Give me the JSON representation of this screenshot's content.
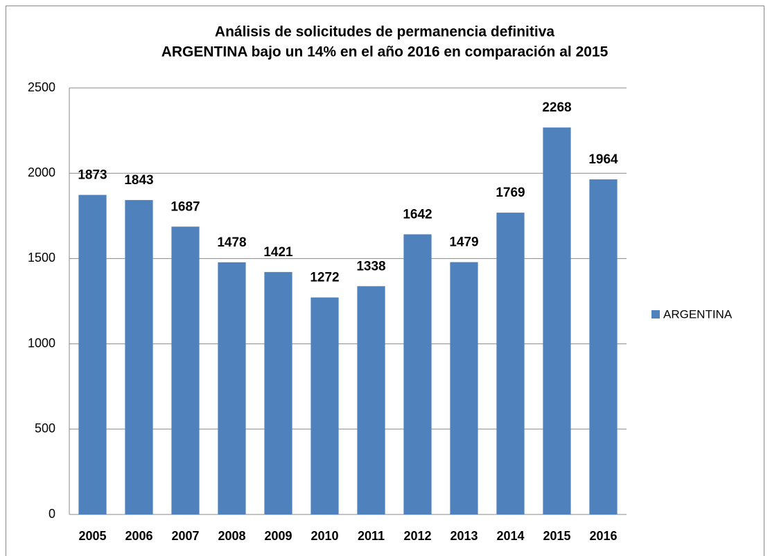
{
  "chart_data": {
    "type": "bar",
    "title": [
      "Análisis de solicitudes de permanencia definitiva",
      "ARGENTINA bajo un 14% en el año 2016 en comparación al 2015"
    ],
    "categories": [
      "2005",
      "2006",
      "2007",
      "2008",
      "2009",
      "2010",
      "2011",
      "2012",
      "2013",
      "2014",
      "2015",
      "2016"
    ],
    "series": [
      {
        "name": "ARGENTINA",
        "color": "#4f81bd",
        "values": [
          1873,
          1843,
          1687,
          1478,
          1421,
          1272,
          1338,
          1642,
          1479,
          1769,
          2268,
          1964
        ]
      }
    ],
    "ylim": [
      0,
      2500
    ],
    "yticks": [
      0,
      500,
      1000,
      1500,
      2000,
      2500
    ],
    "grid": true,
    "legend": "right"
  }
}
